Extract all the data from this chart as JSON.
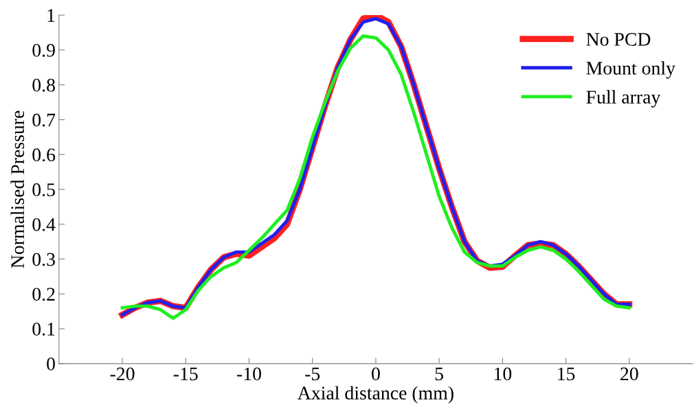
{
  "chart_data": {
    "type": "line",
    "xlabel": "Axial distance (mm)",
    "ylabel": "Normalised Pressure",
    "x": [
      -20,
      -19,
      -18,
      -17,
      -16,
      -15,
      -14,
      -13,
      -12,
      -11,
      -10,
      -9,
      -8,
      -7,
      -6,
      -5,
      -4,
      -3,
      -2,
      -1,
      0,
      1,
      2,
      3,
      4,
      5,
      6,
      7,
      8,
      9,
      10,
      11,
      12,
      13,
      14,
      15,
      16,
      17,
      18,
      19,
      20
    ],
    "series": [
      {
        "name": "No PCD",
        "color": "#ff2020",
        "values": [
          0.14,
          0.16,
          0.175,
          0.18,
          0.165,
          0.16,
          0.22,
          0.27,
          0.305,
          0.315,
          0.31,
          0.335,
          0.36,
          0.4,
          0.5,
          0.62,
          0.74,
          0.85,
          0.93,
          0.99,
          1.0,
          0.98,
          0.91,
          0.8,
          0.68,
          0.56,
          0.45,
          0.35,
          0.295,
          0.275,
          0.278,
          0.31,
          0.34,
          0.345,
          0.34,
          0.315,
          0.28,
          0.24,
          0.2,
          0.17,
          0.17
        ]
      },
      {
        "name": "Mount only",
        "color": "#2020ee",
        "values": [
          0.14,
          0.16,
          0.175,
          0.18,
          0.165,
          0.16,
          0.22,
          0.27,
          0.305,
          0.32,
          0.32,
          0.345,
          0.37,
          0.41,
          0.5,
          0.62,
          0.74,
          0.85,
          0.93,
          0.98,
          0.99,
          0.975,
          0.91,
          0.8,
          0.68,
          0.56,
          0.45,
          0.35,
          0.295,
          0.28,
          0.285,
          0.31,
          0.34,
          0.35,
          0.34,
          0.315,
          0.28,
          0.24,
          0.2,
          0.17,
          0.17
        ]
      },
      {
        "name": "Full array",
        "color": "#20ee20",
        "values": [
          0.16,
          0.165,
          0.165,
          0.155,
          0.13,
          0.155,
          0.21,
          0.25,
          0.275,
          0.29,
          0.325,
          0.36,
          0.4,
          0.44,
          0.53,
          0.65,
          0.75,
          0.84,
          0.905,
          0.94,
          0.935,
          0.9,
          0.83,
          0.72,
          0.6,
          0.48,
          0.39,
          0.32,
          0.29,
          0.28,
          0.28,
          0.305,
          0.325,
          0.335,
          0.325,
          0.3,
          0.265,
          0.225,
          0.185,
          0.165,
          0.16
        ]
      }
    ],
    "xlim": [
      -25,
      25
    ],
    "xticks": [
      -20,
      -15,
      -10,
      -5,
      0,
      5,
      10,
      15,
      20
    ],
    "ylim": [
      0,
      1
    ],
    "yticks": [
      0,
      0.1,
      0.2,
      0.3,
      0.4,
      0.5,
      0.6,
      0.7,
      0.8,
      0.9,
      1
    ],
    "legend": "top right",
    "grid": false,
    "marker": "none",
    "line_style": "solid"
  }
}
